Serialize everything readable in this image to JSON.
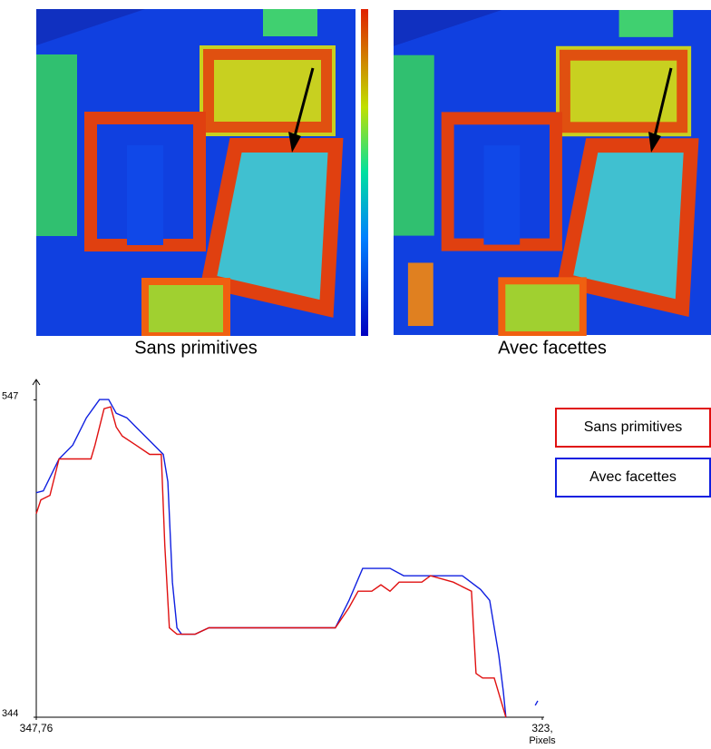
{
  "images": [
    {
      "caption": "Sans primitives"
    },
    {
      "caption": "Avec facettes"
    }
  ],
  "chart_data": {
    "type": "line",
    "xlabel": "Pixels",
    "xlim": [
      0,
      100
    ],
    "xticks": [
      {
        "value": 0,
        "label": "347,76"
      },
      {
        "value": 100,
        "label": "323,"
      }
    ],
    "ylim": [
      344,
      560
    ],
    "yticks": [
      547,
      344
    ],
    "legend": "upper right",
    "series": [
      {
        "name": "Sans primitives",
        "color": "#e01010",
        "x": [
          0,
          0.9,
          2.7,
          4.5,
          6.3,
          10.8,
          11.6,
          13.4,
          14.7,
          15.8,
          17,
          19.7,
          22.4,
          24.7,
          25.4,
          26.3,
          27.8,
          31.4,
          34.1,
          59.1,
          61.8,
          63.6,
          66.3,
          68.1,
          69.9,
          71.7,
          76.2,
          77.9,
          82.4,
          86,
          86.9,
          88.2,
          90.5,
          92.8
        ],
        "values": [
          474.2,
          483,
          485.9,
          509.2,
          509.2,
          509.2,
          518,
          541.3,
          542.5,
          529.6,
          523.8,
          518,
          512.1,
          512.1,
          453.8,
          401.2,
          397.1,
          397.1,
          401.2,
          401.2,
          414.1,
          424.6,
          424.6,
          428.7,
          424.6,
          430.4,
          430.4,
          434.5,
          430.4,
          424.6,
          372,
          369.1,
          369.1,
          344
        ]
      },
      {
        "name": "Avec facettes",
        "color": "#1020e0",
        "x": [
          0,
          1.4,
          4.5,
          7.2,
          9.9,
          12.5,
          14.3,
          15.8,
          17.9,
          19.7,
          22.4,
          25.1,
          26,
          26.9,
          27.8,
          28.7,
          31.4,
          34.1,
          46.6,
          59.1,
          61.8,
          64.5,
          69.9,
          72.6,
          84.2,
          87.8,
          89.6,
          91.4,
          92.3,
          92.8,
          95.7,
          98.6,
          99.1
        ],
        "values": [
          487.6,
          488.8,
          509.2,
          518,
          535.5,
          547.2,
          547.2,
          538.4,
          535.5,
          529.6,
          520.9,
          512.1,
          494.6,
          430.4,
          401.2,
          397.1,
          397.1,
          401.2,
          401.2,
          401.2,
          418.7,
          439.2,
          439.2,
          434.5,
          434.5,
          425.7,
          418.7,
          383.7,
          360.3,
          344,
          null,
          351.6,
          354.5
        ]
      }
    ]
  }
}
